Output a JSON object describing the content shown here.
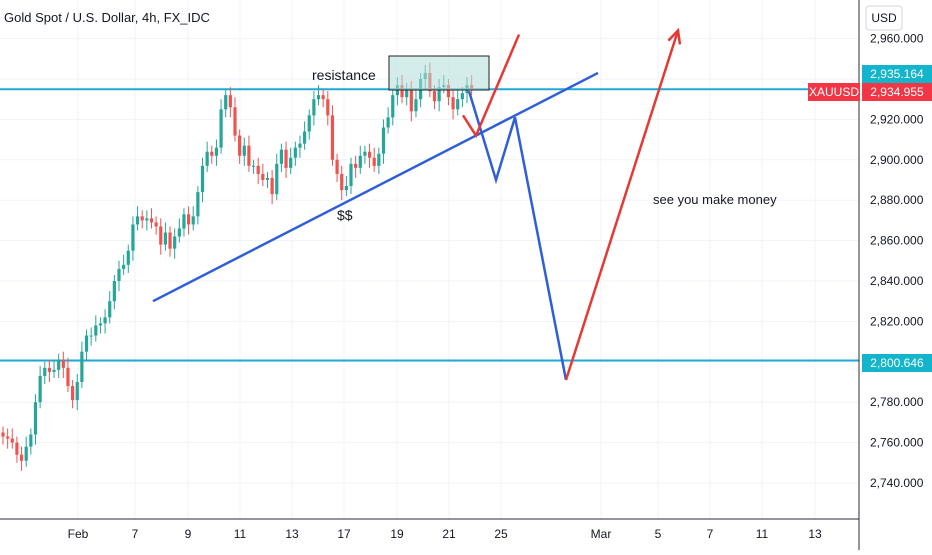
{
  "header": {
    "title": "Gold Spot / U.S. Dollar, 4h, FX_IDC",
    "currency": "USD"
  },
  "price_axis": {
    "ticks": [
      "2,740.000",
      "2,760.000",
      "2,780.000",
      "2,800.000",
      "2,820.000",
      "2,840.000",
      "2,860.000",
      "2,880.000",
      "2,900.000",
      "2,920.000",
      "2,940.000",
      "2,960.000"
    ]
  },
  "time_axis": {
    "ticks": [
      "Feb",
      "7",
      "9",
      "11",
      "13",
      "17",
      "19",
      "21",
      "25",
      "Mar",
      "5",
      "7",
      "11",
      "13"
    ]
  },
  "labels": {
    "resistance_level": "2,935.164",
    "symbol": "XAUUSD",
    "last_price": "2,934.955",
    "support_level": "2,800.646"
  },
  "annotations": {
    "resistance": "resistance",
    "liquidity": "$$",
    "note": "see you make money"
  },
  "colors": {
    "up": "#26a69a",
    "down": "#ef5350",
    "hline": "#22a8d6",
    "trendline": "#2e5fd8",
    "bear_path": "#2e5fd8",
    "bull_path": "#e53935",
    "box_fill": "#b3ded8",
    "price_tag": "#f23645",
    "level_tag": "#12b5cb",
    "grid": "#f0f3fa"
  },
  "chart_data": {
    "type": "candlestick",
    "title": "Gold Spot / U.S. Dollar, 4h, FX_IDC",
    "interval": "4h",
    "y_axis_label": "USD",
    "ylim": [
      2726,
      2968
    ],
    "x_axis_ticks": [
      "Feb",
      "7",
      "9",
      "11",
      "13",
      "17",
      "19",
      "21",
      "25",
      "Mar",
      "5",
      "7",
      "11",
      "13"
    ],
    "ohlc_close_sequence": [
      2763,
      2762,
      2760,
      2754,
      2751,
      2758,
      2764,
      2780,
      2793,
      2797,
      2795,
      2796,
      2801,
      2797,
      2788,
      2781,
      2790,
      2805,
      2813,
      2813,
      2818,
      2819,
      2822,
      2830,
      2840,
      2846,
      2848,
      2855,
      2868,
      2872,
      2870,
      2871,
      2869,
      2867,
      2858,
      2864,
      2856,
      2862,
      2866,
      2873,
      2868,
      2872,
      2884,
      2897,
      2904,
      2902,
      2906,
      2925,
      2932,
      2926,
      2912,
      2902,
      2907,
      2897,
      2897,
      2893,
      2890,
      2891,
      2883,
      2898,
      2905,
      2896,
      2901,
      2906,
      2908,
      2914,
      2922,
      2930,
      2932,
      2930,
      2922,
      2900,
      2893,
      2885,
      2887,
      2898,
      2896,
      2902,
      2904,
      2901,
      2897,
      2903,
      2916,
      2921,
      2932,
      2937,
      2931,
      2935,
      2924,
      2930,
      2940,
      2943,
      2934,
      2929,
      2936,
      2937,
      2931,
      2925,
      2930,
      2933,
      2937,
      2935
    ],
    "horizontal_levels": [
      2934.955,
      2800.646
    ],
    "resistance_zone": {
      "from": 2935,
      "to": 2952
    },
    "trendline": {
      "from": 2830,
      "to": 2943
    },
    "projection_bearish": [
      2934,
      2890,
      2921,
      2791
    ],
    "projection_bullish": [
      2791,
      2964
    ],
    "short_bullish_path": [
      2922,
      2912,
      2962
    ]
  }
}
